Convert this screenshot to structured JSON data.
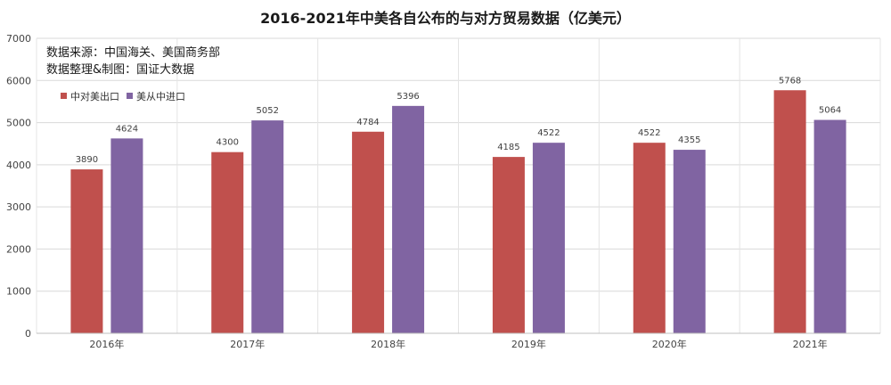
{
  "chart_data": {
    "type": "bar",
    "title": "2016-2021年中美各自公布的与对方贸易数据（亿美元）",
    "notes": [
      "数据来源：中国海关、美国商务部",
      "数据整理&制图：国证大数据"
    ],
    "categories": [
      "2016年",
      "2017年",
      "2018年",
      "2019年",
      "2020年",
      "2021年"
    ],
    "series": [
      {
        "name": "中对美出口",
        "color": "#c0504d",
        "values": [
          3890,
          4300,
          4784,
          4185,
          4522,
          5768
        ]
      },
      {
        "name": "美从中进口",
        "color": "#8064a2",
        "values": [
          4624,
          5052,
          5396,
          4522,
          4355,
          5064
        ]
      }
    ],
    "y_ticks": [
      "0",
      "1000",
      "2000",
      "3000",
      "4000",
      "5000",
      "6000",
      "7000"
    ],
    "ylim": [
      0,
      7000
    ],
    "grid": true,
    "legend": "top-left"
  }
}
